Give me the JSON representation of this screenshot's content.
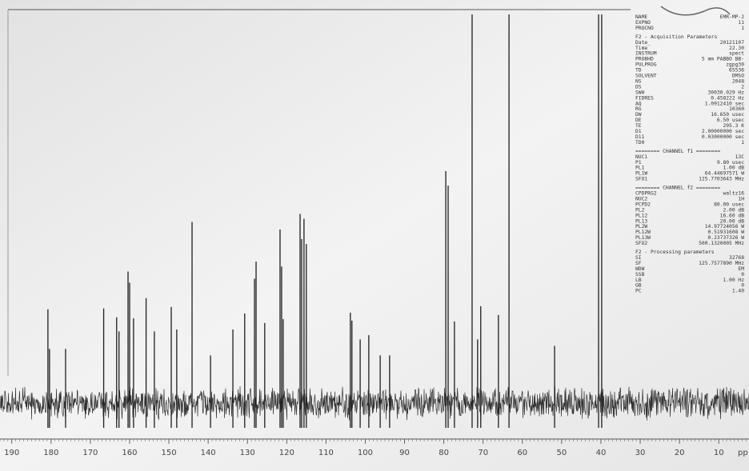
{
  "chart_data": {
    "type": "spectrum",
    "x_label": "pp",
    "xlim": [
      193,
      2.3
    ],
    "xticks": [
      190,
      180,
      170,
      160,
      150,
      140,
      130,
      120,
      110,
      100,
      90,
      80,
      70,
      60,
      50,
      40,
      30,
      20,
      10
    ],
    "ylim": [
      0,
      100
    ],
    "color": "#1e1e1e",
    "x": [
      180.8,
      180.4,
      176.3,
      166.6,
      163.3,
      162.7,
      160.4,
      160.0,
      159.0,
      155.8,
      153.7,
      149.4,
      148.0,
      144.1,
      139.4,
      133.7,
      130.7,
      128.2,
      127.8,
      125.6,
      121.7,
      121.3,
      120.9,
      116.6,
      116.2,
      115.6,
      115.0,
      103.8,
      103.4,
      101.3,
      99.1,
      96.2,
      93.8,
      79.5,
      78.9,
      77.3,
      72.8,
      71.4,
      70.6,
      66.1,
      63.4,
      51.8,
      40.6,
      39.8
    ],
    "values": [
      22.7,
      12.3,
      12.3,
      22.9,
      20.6,
      16.9,
      32.6,
      29.7,
      20.3,
      25.6,
      16.9,
      23.3,
      17.4,
      45.6,
      10.6,
      17.4,
      21.6,
      30.7,
      35.2,
      19.1,
      43.6,
      33.9,
      20.1,
      47.7,
      41.1,
      46.4,
      39.8,
      21.8,
      19.7,
      14.8,
      15.9,
      10.6,
      10.6,
      58.9,
      55.1,
      19.5,
      100,
      14.8,
      23.5,
      21.2,
      100,
      13.1,
      100,
      100
    ]
  },
  "parameters": [
    {
      "rows": [
        [
          "NAME",
          "EMR-MP-2"
        ],
        [
          "EXPNO",
          "11"
        ],
        [
          "PROCNO",
          "1"
        ]
      ]
    },
    {
      "title": "F2 - Acquisition Parameters",
      "rows": [
        [
          "Date_",
          "20121107"
        ],
        [
          "Time",
          "22.30"
        ],
        [
          "INSTRUM",
          "spect"
        ],
        [
          "PROBHD",
          "5 mm PABBO BB-"
        ],
        [
          "PULPROG",
          "zgpg30"
        ],
        [
          "TD",
          "65536"
        ],
        [
          "SOLVENT",
          "DMSO"
        ],
        [
          "NS",
          "2048"
        ],
        [
          "DS",
          "2"
        ],
        [
          "SWH",
          "30030.029 Hz"
        ],
        [
          "FIDRES",
          "0.458222 Hz"
        ],
        [
          "AQ",
          "1.0912410 sec"
        ],
        [
          "RG",
          "10360"
        ],
        [
          "DW",
          "16.650 usec"
        ],
        [
          "DE",
          "6.50 usec"
        ],
        [
          "TE",
          "295.3 K"
        ],
        [
          "D1",
          "2.00000000 sec"
        ],
        [
          "D11",
          "0.03000000 sec"
        ],
        [
          "TD0",
          "1"
        ]
      ]
    },
    {
      "title": "======== CHANNEL f1 ========",
      "rows": [
        [
          "NUC1",
          "13C"
        ],
        [
          "P1",
          "9.80 usec"
        ],
        [
          "PL1",
          "1.00 dB"
        ],
        [
          "PL1W",
          "64.44697571 W"
        ],
        [
          "SFO1",
          "125.7703643 MHz"
        ]
      ]
    },
    {
      "title": "======== CHANNEL f2 ========",
      "rows": [
        [
          "CPDPRG2",
          "waltz16"
        ],
        [
          "NUC2",
          "1H"
        ],
        [
          "PCPD2",
          "80.00 usec"
        ],
        [
          "PL2",
          "2.00 dB"
        ],
        [
          "PL12",
          "16.60 dB"
        ],
        [
          "PL13",
          "20.00 dB"
        ],
        [
          "PL2W",
          "14.97724056 W"
        ],
        [
          "PL12W",
          "0.51931608 W"
        ],
        [
          "PL13W",
          "0.23737326 W"
        ],
        [
          "SFO2",
          "500.1320005 MHz"
        ]
      ]
    },
    {
      "title": "F2 - Processing parameters",
      "rows": [
        [
          "SI",
          "32768"
        ],
        [
          "SF",
          "125.7577890 MHz"
        ],
        [
          "WDW",
          "EM"
        ],
        [
          "SSB",
          "0"
        ],
        [
          "LB",
          "1.00 Hz"
        ],
        [
          "GB",
          "0"
        ],
        [
          "PC",
          "1.40"
        ]
      ]
    }
  ]
}
